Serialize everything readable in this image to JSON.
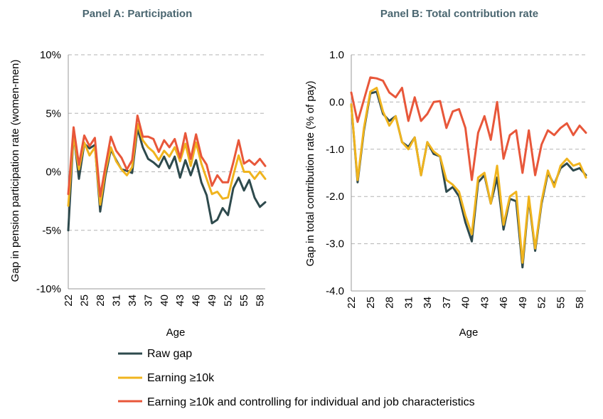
{
  "legend": [
    {
      "name": "Raw gap",
      "color": "#2e4a4d"
    },
    {
      "name": "Earning ≥10k",
      "color": "#f0b41e"
    },
    {
      "name": "Earning ≥10k and controlling for individual and job characteristics",
      "color": "#e8573a"
    }
  ],
  "chart_data": [
    {
      "type": "line",
      "title": "Panel A: Participation",
      "xlabel": "Age",
      "ylabel": "Gap in pension participation rate (women-men)",
      "ylim": [
        -10,
        10
      ],
      "y_ticks": [
        10,
        5,
        0,
        -5,
        -10
      ],
      "y_tick_labels": [
        "10%",
        "5%",
        "0%",
        "-5%",
        "-10%"
      ],
      "x_ticks": [
        22,
        25,
        28,
        31,
        34,
        37,
        40,
        43,
        46,
        49,
        52,
        55,
        58
      ],
      "x": [
        22,
        23,
        24,
        25,
        26,
        27,
        28,
        29,
        30,
        31,
        32,
        33,
        34,
        35,
        36,
        37,
        38,
        39,
        40,
        41,
        42,
        43,
        44,
        45,
        46,
        47,
        48,
        49,
        50,
        51,
        52,
        53,
        54,
        55,
        56,
        57,
        58,
        59
      ],
      "grid": "horizontal dashed",
      "series": [
        {
          "name": "Raw gap",
          "color": "#2e4a4d",
          "values": [
            -5.0,
            3.3,
            -0.6,
            2.4,
            2.0,
            2.3,
            -3.4,
            -0.3,
            1.9,
            1.0,
            0.2,
            0.1,
            -0.1,
            3.7,
            2.1,
            1.1,
            0.8,
            0.4,
            1.3,
            0.3,
            1.3,
            -0.5,
            1.0,
            -0.3,
            1.0,
            -0.9,
            -2.0,
            -4.4,
            -4.1,
            -3.1,
            -3.7,
            -1.4,
            -0.5,
            -1.6,
            -0.7,
            -2.2,
            -3.0,
            -2.6
          ]
        },
        {
          "name": "Earning ≥10k",
          "color": "#f0b41e",
          "values": [
            -2.9,
            3.1,
            0.2,
            2.5,
            1.4,
            2.1,
            -2.8,
            0.1,
            2.1,
            0.9,
            0.2,
            -0.3,
            0.4,
            4.1,
            2.7,
            2.1,
            1.7,
            1.0,
            1.8,
            1.3,
            2.1,
            0.9,
            2.4,
            0.5,
            2.5,
            0.7,
            -0.6,
            -1.9,
            -1.7,
            -2.3,
            -2.2,
            -0.3,
            1.4,
            0.0,
            0.0,
            -0.6,
            0.0,
            -0.6
          ]
        },
        {
          "name": "Earning ≥10k and controlling for individual and job characteristics",
          "color": "#e8573a",
          "values": [
            -1.9,
            3.8,
            0.6,
            3.1,
            2.2,
            2.9,
            -2.1,
            0.5,
            3.0,
            1.8,
            1.2,
            0.2,
            1.0,
            4.8,
            3.0,
            3.0,
            2.8,
            1.7,
            2.7,
            2.1,
            2.8,
            1.2,
            3.3,
            1.1,
            3.2,
            1.3,
            0.6,
            -1.2,
            -0.3,
            -0.9,
            -0.9,
            0.8,
            2.7,
            0.7,
            1.0,
            0.6,
            1.1,
            0.5
          ]
        }
      ]
    },
    {
      "type": "line",
      "title": "Panel B: Total contribution rate",
      "xlabel": "Age",
      "ylabel": "Gap in total contribution rate (% of pay)",
      "ylim": [
        -4,
        1
      ],
      "y_ticks": [
        1,
        0,
        -1,
        -2,
        -3,
        -4
      ],
      "y_tick_labels": [
        "1.0",
        "0.0",
        "-1.0",
        "-2.0",
        "-3.0",
        "-4.0"
      ],
      "x_ticks": [
        22,
        25,
        28,
        31,
        34,
        37,
        40,
        43,
        46,
        49,
        52,
        55,
        58
      ],
      "x": [
        22,
        23,
        24,
        25,
        26,
        27,
        28,
        29,
        30,
        31,
        32,
        33,
        34,
        35,
        36,
        37,
        38,
        39,
        40,
        41,
        42,
        43,
        44,
        45,
        46,
        47,
        48,
        49,
        50,
        51,
        52,
        53,
        54,
        55,
        56,
        57,
        58,
        59
      ],
      "grid": "horizontal dashed",
      "series": [
        {
          "name": "Raw gap",
          "color": "#2e4a4d",
          "values": [
            -0.05,
            -1.7,
            -0.6,
            0.18,
            0.22,
            -0.25,
            -0.4,
            -0.3,
            -0.85,
            -0.95,
            -0.75,
            -1.55,
            -0.85,
            -1.1,
            -1.15,
            -1.9,
            -1.8,
            -2.0,
            -2.55,
            -2.95,
            -1.7,
            -1.55,
            -2.15,
            -1.6,
            -2.7,
            -2.05,
            -2.1,
            -3.5,
            -2.05,
            -3.15,
            -2.15,
            -1.5,
            -1.75,
            -1.4,
            -1.3,
            -1.45,
            -1.4,
            -1.55
          ]
        },
        {
          "name": "Earning ≥10k",
          "color": "#f0b41e",
          "values": [
            -0.05,
            -1.65,
            -0.55,
            0.22,
            0.3,
            -0.2,
            -0.5,
            -0.3,
            -0.85,
            -1.0,
            -0.75,
            -1.55,
            -0.85,
            -1.05,
            -1.15,
            -1.65,
            -1.75,
            -1.9,
            -2.4,
            -2.8,
            -1.6,
            -1.5,
            -2.15,
            -1.35,
            -2.6,
            -2.0,
            -1.9,
            -3.4,
            -2.0,
            -3.1,
            -2.1,
            -1.45,
            -1.8,
            -1.35,
            -1.2,
            -1.35,
            -1.3,
            -1.6
          ]
        },
        {
          "name": "Earning ≥10k and controlling for individual and job characteristics",
          "color": "#e8573a",
          "values": [
            0.2,
            -0.42,
            0.05,
            0.52,
            0.5,
            0.45,
            0.2,
            0.1,
            0.3,
            -0.4,
            0.1,
            -0.4,
            -0.25,
            0.0,
            0.02,
            -0.55,
            -0.2,
            -0.15,
            -0.55,
            -1.65,
            -0.65,
            -0.3,
            -0.8,
            0.0,
            -1.2,
            -0.7,
            -0.6,
            -1.5,
            -0.6,
            -1.55,
            -0.9,
            -0.6,
            -0.7,
            -0.55,
            -0.45,
            -0.7,
            -0.5,
            -0.65
          ]
        }
      ]
    }
  ]
}
